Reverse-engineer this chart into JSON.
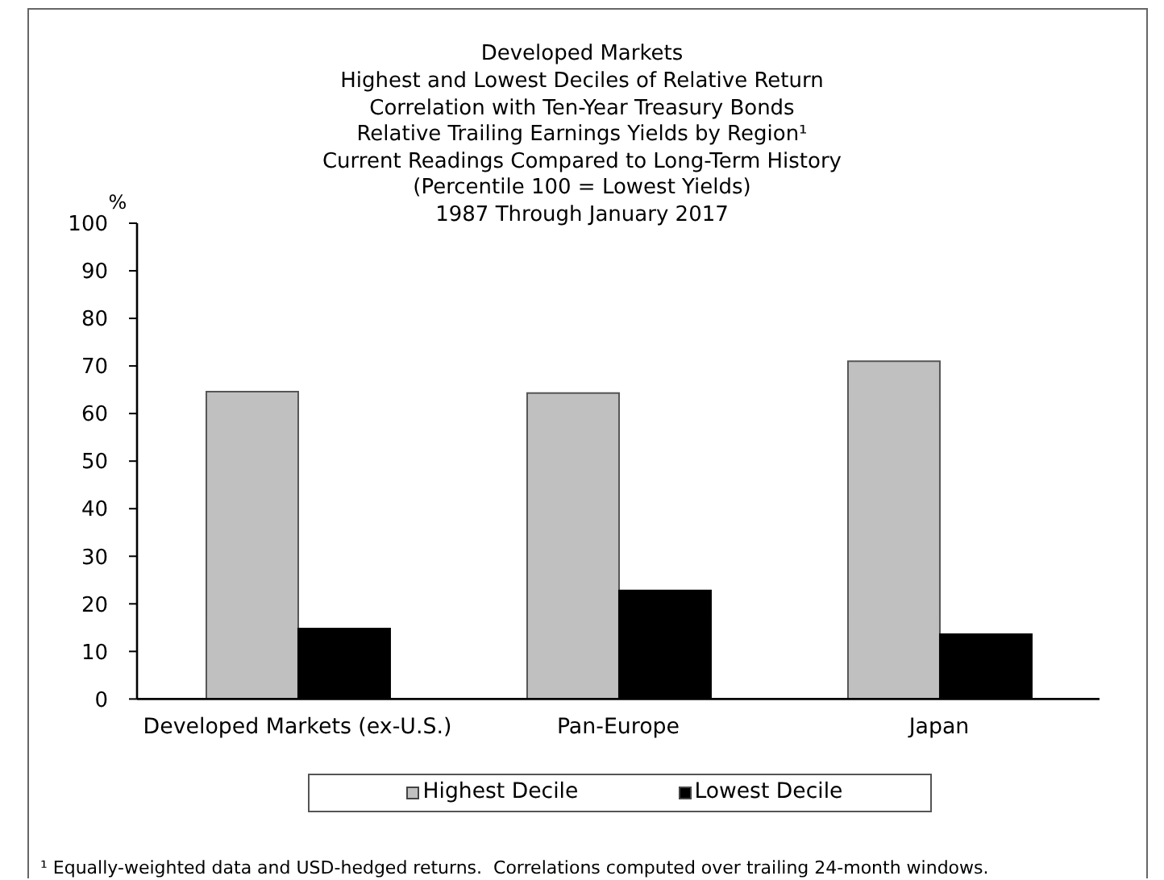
{
  "chart_data": {
    "type": "bar",
    "title": "Developed Markets\nHighest and Lowest Deciles of Relative Return\nCorrelation with Ten-Year Treasury Bonds\nRelative Trailing Earnings Yields by Region¹\nCurrent Readings Compared to Long-Term History\n(Percentile 100 = Lowest Yields)\n1987 Through January 2017",
    "ylabel": "%",
    "categories": [
      "Developed Markets (ex-U.S.)",
      "Pan-Europe",
      "Japan"
    ],
    "series": [
      {
        "name": "Highest Decile",
        "color": "#c0c0c0",
        "values": [
          64.6,
          64.3,
          71.0
        ]
      },
      {
        "name": "Lowest Decile",
        "color": "#000000",
        "values": [
          14.8,
          22.8,
          13.6
        ]
      }
    ],
    "ylim": [
      0,
      100
    ],
    "yticks": [
      0,
      10,
      20,
      30,
      40,
      50,
      60,
      70,
      80,
      90,
      100
    ],
    "legend": "bottom",
    "annotations": [
      "¹ Equally-weighted data and USD-hedged returns.  Correlations computed over trailing 24-month windows."
    ]
  }
}
